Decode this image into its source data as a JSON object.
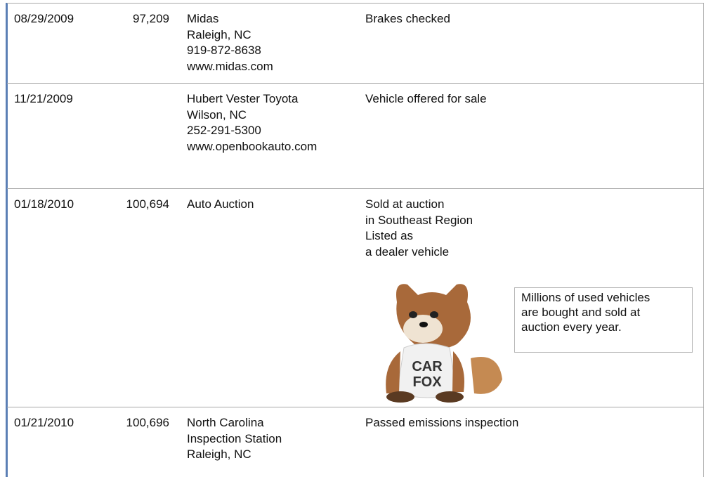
{
  "table": {
    "rows": [
      {
        "date": "08/29/2009",
        "mileage": "97,209",
        "source": [
          "Midas",
          "Raleigh, NC",
          "919-872-8638",
          "www.midas.com"
        ],
        "comments": [
          "Brakes checked"
        ]
      },
      {
        "date": "11/21/2009",
        "source": [
          "Hubert Vester Toyota",
          "Wilson, NC",
          "252-291-5300",
          "www.openbookauto.com"
        ],
        "comments": [
          "Vehicle offered for sale"
        ]
      },
      {
        "date": "01/18/2010",
        "mileage": "100,694",
        "source": [
          "Auto Auction"
        ],
        "comments": [
          "Sold at auction",
          "in Southeast Region",
          "Listed as",
          "a dealer vehicle"
        ]
      },
      {
        "date": "01/21/2010",
        "mileage": "100,696",
        "source": [
          "North Carolina",
          "Inspection Station",
          "Raleigh, NC"
        ],
        "comments": [
          "Passed emissions inspection"
        ]
      }
    ]
  },
  "callout": {
    "lines": [
      "Millions of used vehicles",
      "are bought and sold at",
      "auction every year."
    ]
  },
  "mascot": {
    "shirt": [
      "CAR",
      "FOX"
    ]
  }
}
